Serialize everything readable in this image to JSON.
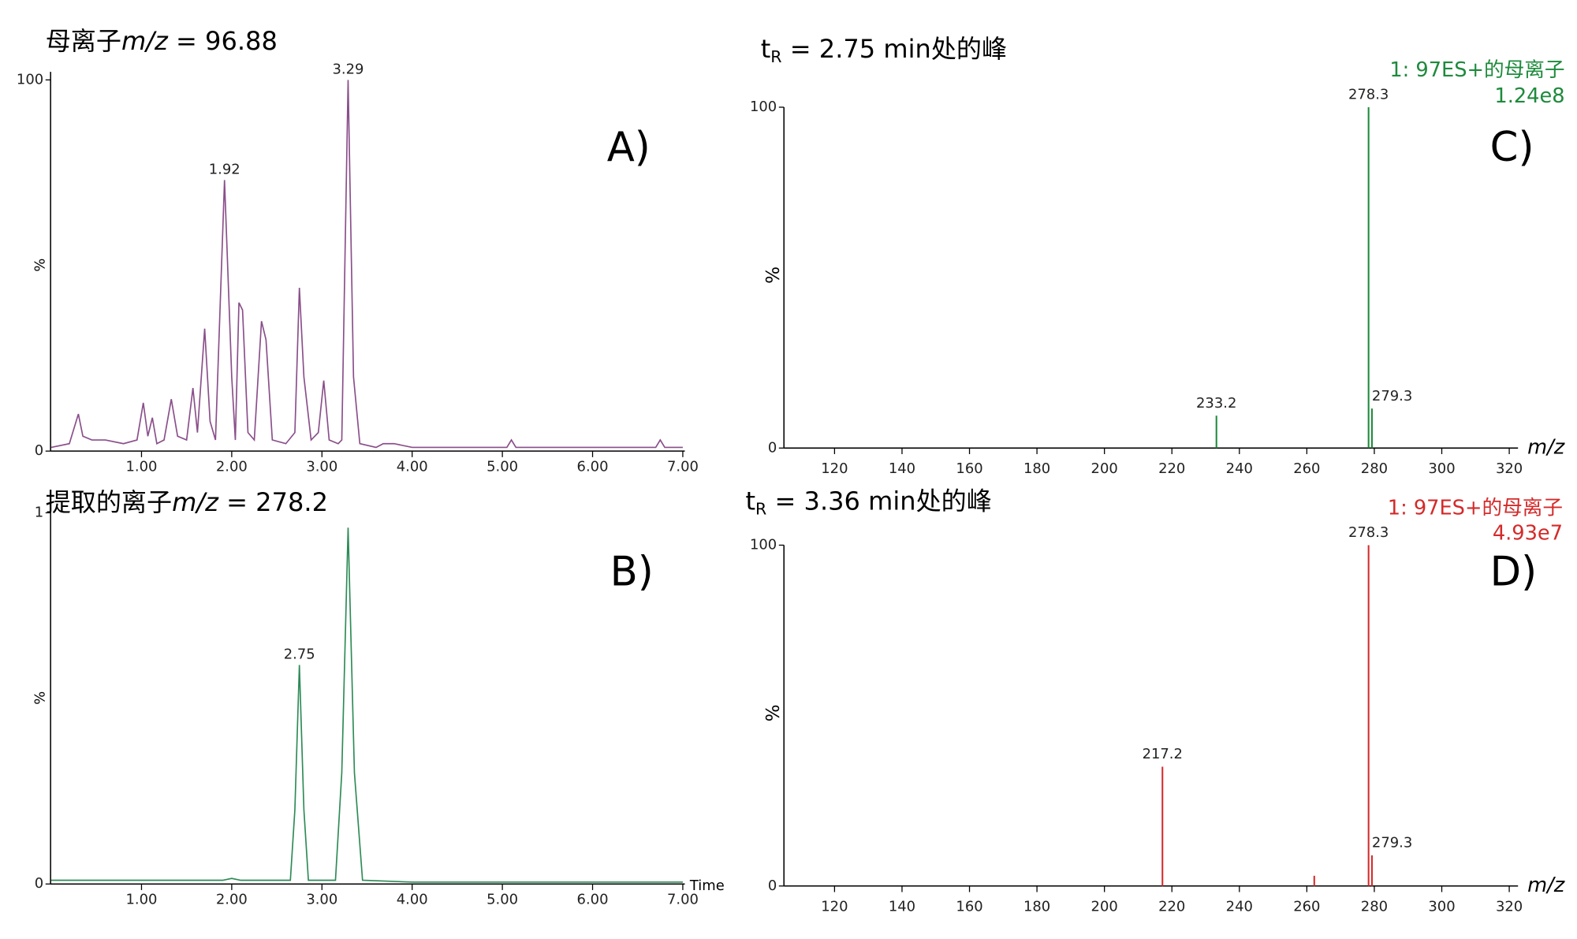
{
  "chart_data": [
    {
      "type": "line",
      "color": "#8a4f8a",
      "title": [
        {
          "text": "母离子"
        },
        {
          "text": "m/z",
          "style": "italic"
        },
        {
          "text": " = 96.88"
        }
      ],
      "panel_label": "A)",
      "y_label": "%",
      "x": [
        0,
        0.2,
        0.3,
        0.35,
        0.45,
        0.6,
        0.8,
        0.95,
        1.02,
        1.07,
        1.12,
        1.17,
        1.25,
        1.33,
        1.4,
        1.5,
        1.57,
        1.62,
        1.7,
        1.76,
        1.82,
        1.92,
        2.0,
        2.04,
        2.08,
        2.12,
        2.18,
        2.25,
        2.33,
        2.38,
        2.45,
        2.6,
        2.7,
        2.75,
        2.8,
        2.88,
        2.96,
        3.02,
        3.08,
        3.18,
        3.22,
        3.29,
        3.35,
        3.42,
        3.6,
        3.68,
        3.8,
        4.0,
        4.5,
        5.05,
        5.1,
        5.15,
        6.0,
        6.7,
        6.75,
        6.8,
        7.0
      ],
      "values": [
        1,
        2,
        10,
        4,
        3,
        3,
        2,
        3,
        13,
        4,
        9,
        2,
        3,
        14,
        4,
        3,
        17,
        5,
        33,
        8,
        3,
        73,
        20,
        3,
        40,
        38,
        5,
        3,
        35,
        30,
        3,
        2,
        5,
        44,
        20,
        3,
        5,
        19,
        3,
        2,
        3,
        100,
        20,
        2,
        1,
        2,
        2,
        1,
        1,
        1,
        3,
        1,
        1,
        1,
        3,
        1,
        1
      ],
      "annotations": [
        {
          "text": "1.92",
          "x": 1.92,
          "y": 73
        },
        {
          "text": "3.29",
          "x": 3.29,
          "y": 100
        }
      ],
      "xlim": [
        0,
        7
      ],
      "ylim": [
        0,
        100
      ],
      "xticks": [
        {
          "value": 1,
          "label": "1.00"
        },
        {
          "value": 2,
          "label": "2.00"
        },
        {
          "value": 3,
          "label": "3.00"
        },
        {
          "value": 4,
          "label": "4.00"
        },
        {
          "value": 5,
          "label": "5.00"
        },
        {
          "value": 6,
          "label": "6.00"
        },
        {
          "value": 7,
          "label": "7.00"
        }
      ],
      "yticks": [
        0,
        100
      ]
    },
    {
      "type": "line",
      "color": "#2e8b57",
      "title": [
        {
          "text": "提取的离子"
        },
        {
          "text": "m/z",
          "style": "italic"
        },
        {
          "text": " = 278.2"
        }
      ],
      "panel_label": "B)",
      "y_label": "%",
      "x_label": "Time",
      "x": [
        0,
        1.9,
        2.0,
        2.1,
        2.4,
        2.65,
        2.7,
        2.75,
        2.8,
        2.85,
        3.15,
        3.22,
        3.29,
        3.36,
        3.45,
        4.0,
        7.0
      ],
      "values": [
        1,
        1,
        1.5,
        1,
        1,
        1,
        20,
        59,
        20,
        1,
        1,
        30,
        96,
        30,
        1,
        0.5,
        0.5
      ],
      "annotations": [
        {
          "text": "2.75",
          "x": 2.75,
          "y": 59
        }
      ],
      "xlim": [
        0,
        7
      ],
      "ylim": [
        0,
        100
      ],
      "xticks": [
        {
          "value": 1,
          "label": "1.00"
        },
        {
          "value": 2,
          "label": "2.00"
        },
        {
          "value": 3,
          "label": "3.00"
        },
        {
          "value": 4,
          "label": "4.00"
        },
        {
          "value": 5,
          "label": "5.00"
        },
        {
          "value": 6,
          "label": "6.00"
        },
        {
          "value": 7,
          "label": "7.00"
        }
      ],
      "yticks": [
        0,
        {
          "value": 100,
          "label": "1"
        }
      ]
    },
    {
      "type": "bar",
      "color": "#1e8a3c",
      "title": [
        {
          "text": "t"
        },
        {
          "text": "R",
          "style": "sub"
        },
        {
          "text": " = 2.75 min处的峰"
        }
      ],
      "panel_label": "C)",
      "y_label": "%",
      "x_label": "m/z",
      "legend_text": "1: 97ES+的母离子",
      "scale_text": "1.24e8",
      "x": [
        233.2,
        278.3,
        279.3
      ],
      "values": [
        9.5,
        100,
        11.6
      ],
      "annotations": [
        {
          "text": "233.2",
          "x": 233.2,
          "y": 9.5
        },
        {
          "text": "278.3",
          "x": 278.3,
          "y": 100
        },
        {
          "text": "279.3",
          "x": 279.3,
          "y": 11.6
        }
      ],
      "xlim": [
        105,
        322
      ],
      "ylim": [
        0,
        100
      ],
      "xticks": [
        120,
        140,
        160,
        180,
        200,
        220,
        240,
        260,
        280,
        300,
        320
      ],
      "yticks": [
        0,
        100
      ]
    },
    {
      "type": "bar",
      "color": "#d42a2a",
      "title": [
        {
          "text": "t"
        },
        {
          "text": "R",
          "style": "sub"
        },
        {
          "text": " = 3.36 min处的峰"
        }
      ],
      "panel_label": "D)",
      "y_label": "%",
      "x_label": "m/z",
      "legend_text": "1: 97ES+的母离子",
      "scale_text": "4.93e7",
      "x": [
        217.2,
        262.2,
        278.3,
        279.3
      ],
      "values": [
        35,
        3,
        100,
        9
      ],
      "annotations": [
        {
          "text": "217.2",
          "x": 217.2,
          "y": 35
        },
        {
          "text": "278.3",
          "x": 278.3,
          "y": 100
        },
        {
          "text": "279.3",
          "x": 279.3,
          "y": 9
        }
      ],
      "xlim": [
        105,
        322
      ],
      "ylim": [
        0,
        100
      ],
      "xticks": [
        120,
        140,
        160,
        180,
        200,
        220,
        240,
        260,
        280,
        300,
        320
      ],
      "yticks": [
        0,
        100
      ]
    }
  ]
}
